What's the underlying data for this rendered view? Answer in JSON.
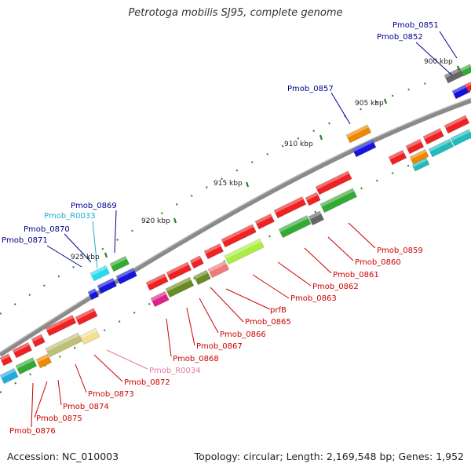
{
  "title": "Petrotoga mobilis SJ95, complete genome",
  "footer": {
    "accession": "Accession: NC_010003",
    "summary": "Topology: circular; Length: 2,169,548 bp; Genes: 1,952"
  },
  "colors": {
    "backbone": "#8a8a8a",
    "label_red": "#cc0000",
    "label_blue": "#00008b",
    "label_cyan": "#20b0d0",
    "label_pink": "#e878a8",
    "tick": "#2e7d2e"
  },
  "ticks": [
    {
      "text": "900 kbp"
    },
    {
      "text": "905 kbp"
    },
    {
      "text": "910 kbp"
    },
    {
      "text": "915 kbp"
    },
    {
      "text": "920 kbp"
    },
    {
      "text": "925 kbp"
    }
  ],
  "labels": [
    {
      "text": "Pmob_0851",
      "color": "label_blue"
    },
    {
      "text": "Pmob_0852",
      "color": "label_blue"
    },
    {
      "text": "Pmob_0857",
      "color": "label_blue"
    },
    {
      "text": "Pmob_0869",
      "color": "label_blue"
    },
    {
      "text": "Pmob_R0033",
      "color": "label_cyan"
    },
    {
      "text": "Pmob_0870",
      "color": "label_blue"
    },
    {
      "text": "Pmob_0871",
      "color": "label_blue"
    },
    {
      "text": "Pmob_0859",
      "color": "label_red"
    },
    {
      "text": "Pmob_0860",
      "color": "label_red"
    },
    {
      "text": "Pmob_0861",
      "color": "label_red"
    },
    {
      "text": "Pmob_0862",
      "color": "label_red"
    },
    {
      "text": "Pmob_0863",
      "color": "label_red"
    },
    {
      "text": "prfB",
      "color": "label_red"
    },
    {
      "text": "Pmob_0865",
      "color": "label_red"
    },
    {
      "text": "Pmob_0866",
      "color": "label_red"
    },
    {
      "text": "Pmob_0867",
      "color": "label_red"
    },
    {
      "text": "Pmob_0868",
      "color": "label_red"
    },
    {
      "text": "Pmob_R0034",
      "color": "label_pink"
    },
    {
      "text": "Pmob_0872",
      "color": "label_red"
    },
    {
      "text": "Pmob_0873",
      "color": "label_red"
    },
    {
      "text": "Pmob_0874",
      "color": "label_red"
    },
    {
      "text": "Pmob_0875",
      "color": "label_red"
    },
    {
      "text": "Pmob_0876",
      "color": "label_red"
    }
  ]
}
